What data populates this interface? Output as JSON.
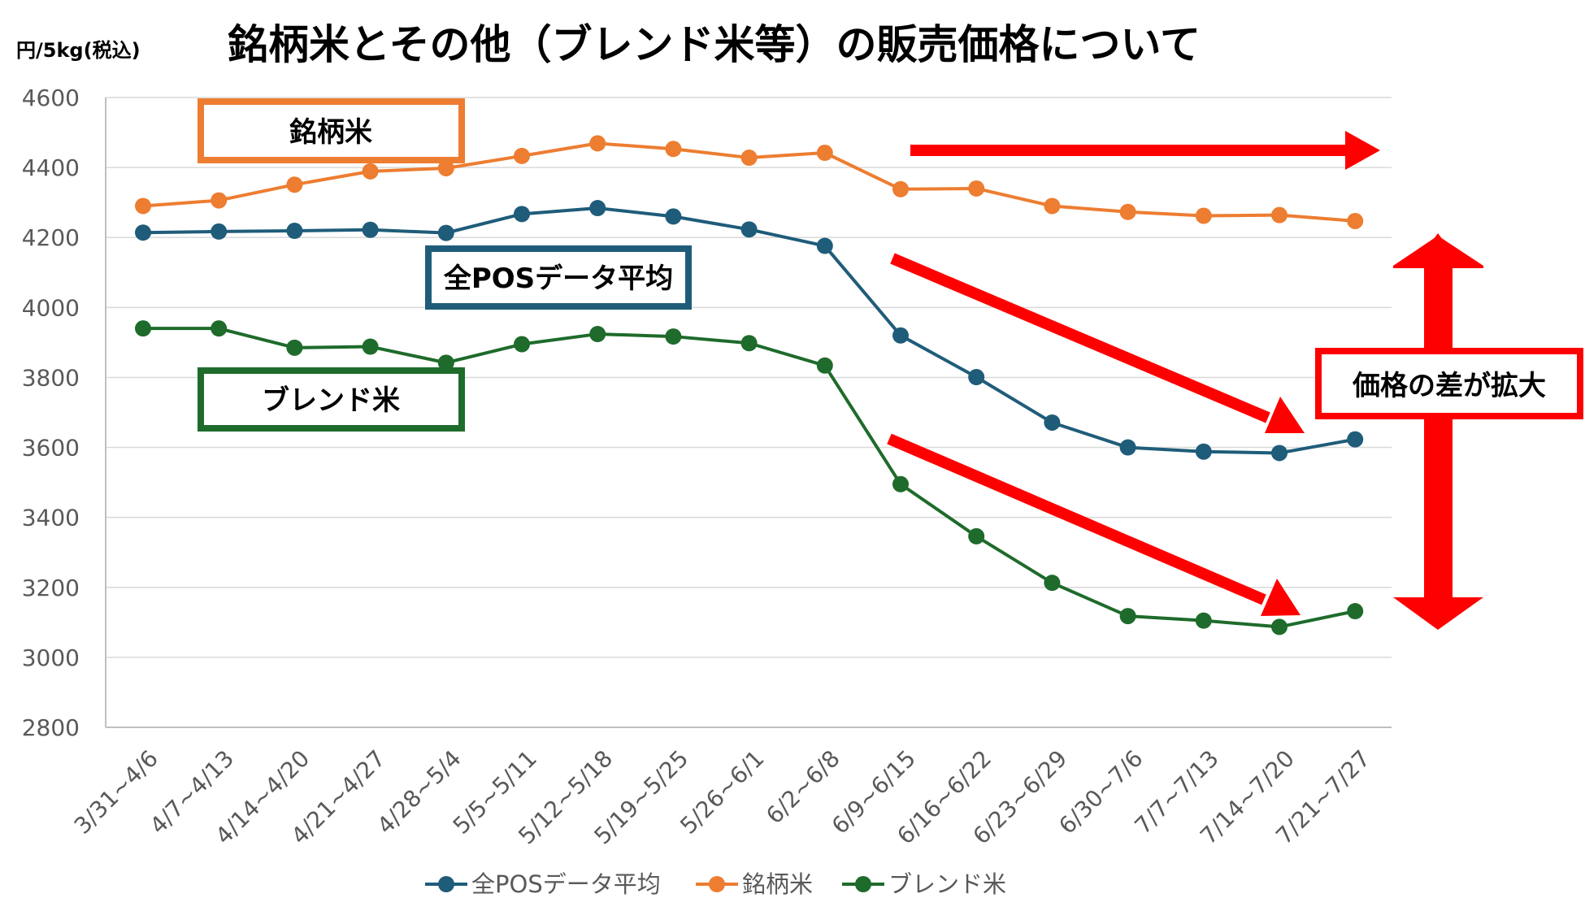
{
  "title": "銘柄米とその他（ブレンド米等）の販売価格について",
  "y_unit": "円/5kg(税込)",
  "colors": {
    "all_pos": "#1F5C7A",
    "brand": "#ED7D31",
    "blend": "#1E6B2B",
    "arrow": "#FF0000",
    "grid": "#D9D9D9",
    "axis": "#BFBFBF"
  },
  "labels": {
    "brand": "銘柄米",
    "all_pos": "全POSデータ平均",
    "blend": "ブレンド米",
    "gap": "価格の差が拡大"
  },
  "chart_data": {
    "type": "line",
    "title": "銘柄米とその他（ブレンド米等）の販売価格について",
    "ylabel": "円/5kg(税込)",
    "xlabel": "",
    "ylim": [
      2800,
      4600
    ],
    "yticks": [
      2800,
      3000,
      3200,
      3400,
      3600,
      3800,
      4000,
      4200,
      4400,
      4600
    ],
    "grid": true,
    "legend_position": "bottom",
    "categories": [
      "3/31~4/6",
      "4/7~4/13",
      "4/14~4/20",
      "4/21~4/27",
      "4/28~5/4",
      "5/5~5/11",
      "5/12~5/18",
      "5/19~5/25",
      "5/26~6/1",
      "6/2~6/8",
      "6/9~6/15",
      "6/16~6/22",
      "6/23~6/29",
      "6/30~7/6",
      "7/7~7/13",
      "7/14~7/20",
      "7/21~7/27"
    ],
    "series": [
      {
        "key": "all_pos",
        "name": "全POSデータ平均",
        "values": [
          4214,
          4217,
          4219,
          4222,
          4213,
          4267,
          4284,
          4260,
          4223,
          4176,
          3920,
          3801,
          3671,
          3600,
          3588,
          3584,
          3623
        ]
      },
      {
        "key": "brand",
        "name": "銘柄米",
        "values": [
          4290,
          4306,
          4351,
          4389,
          4398,
          4433,
          4469,
          4453,
          4428,
          4442,
          4338,
          4340,
          4290,
          4273,
          4262,
          4264,
          4247
        ]
      },
      {
        "key": "blend",
        "name": "ブレンド米",
        "values": [
          3940,
          3940,
          3885,
          3888,
          3842,
          3895,
          3924,
          3917,
          3898,
          3834,
          3495,
          3346,
          3213,
          3118,
          3105,
          3087,
          3132
        ]
      }
    ]
  }
}
